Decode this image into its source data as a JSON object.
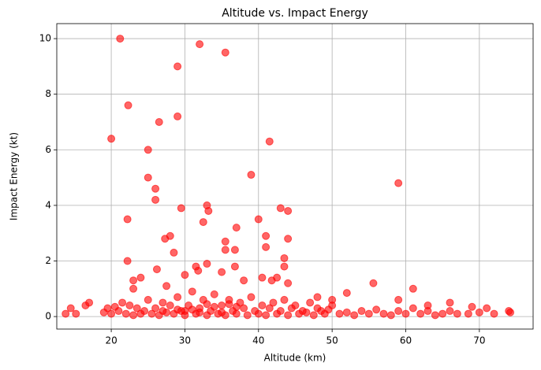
{
  "chart_data": {
    "type": "scatter",
    "title": "Altitude vs. Impact Energy",
    "x_label": "Altitude (km)",
    "y_label": "Impact Energy (kt)",
    "color": "#ff0000",
    "grid": true,
    "xlim": [
      12.6,
      77.3
    ],
    "ylim": [
      -0.45,
      10.54
    ],
    "xticks": [
      20,
      30,
      40,
      50,
      60,
      70
    ],
    "yticks": [
      0,
      2,
      4,
      6,
      8,
      10
    ],
    "x": [
      21.2,
      32,
      35.5,
      29,
      22.3,
      29,
      26.5,
      20,
      41.5,
      25,
      39,
      59,
      25,
      26,
      26,
      33,
      43,
      29.5,
      44,
      33.2,
      40,
      22.2,
      32.5,
      37,
      28,
      41,
      27.3,
      44,
      35.5,
      36.8,
      41,
      28.5,
      35.5,
      43.5,
      22.2,
      33,
      31.5,
      36.8,
      43.5,
      26.2,
      31.8,
      35,
      41.8,
      55.6,
      44,
      24,
      23,
      30,
      38,
      42.5,
      40.5,
      61,
      23,
      27.5,
      52,
      48,
      59,
      50,
      66,
      17,
      16.5,
      14.5,
      13.8,
      15.2,
      69,
      71,
      74,
      74.2,
      72,
      63,
      19,
      19.5,
      20,
      20.5,
      21,
      21.5,
      22,
      22.5,
      23,
      23.5,
      24,
      24.5,
      25,
      25.5,
      26,
      26.5,
      27,
      27.5,
      28,
      28.5,
      29,
      29.5,
      30,
      30.5,
      31,
      31.5,
      32,
      32.5,
      33,
      33.5,
      34,
      34.5,
      35,
      35.5,
      36,
      36.5,
      37,
      37.5,
      38,
      38.5,
      39,
      39.5,
      40,
      40.5,
      41,
      41.5,
      42,
      42.5,
      43,
      43.5,
      44,
      44.5,
      45,
      45.5,
      46,
      46.5,
      47,
      47.5,
      48,
      48.5,
      49,
      49.5,
      50,
      51,
      52,
      53,
      54,
      55,
      56,
      57,
      58,
      59,
      60,
      61,
      62,
      63,
      64,
      65,
      66,
      67,
      68.5,
      70,
      31,
      33,
      35,
      37,
      29,
      27,
      34,
      36,
      32,
      30
    ],
    "values": [
      10,
      9.8,
      9.5,
      9,
      7.6,
      7.2,
      7,
      6.4,
      6.3,
      6,
      5.1,
      4.8,
      5,
      4.6,
      4.2,
      4,
      3.9,
      3.9,
      3.8,
      3.8,
      3.5,
      3.5,
      3.4,
      3.2,
      2.9,
      2.9,
      2.8,
      2.8,
      2.7,
      2.4,
      2.5,
      2.3,
      2.4,
      2.1,
      2,
      1.9,
      1.8,
      1.8,
      1.8,
      1.7,
      1.65,
      1.6,
      1.3,
      1.2,
      1.2,
      1.4,
      1.3,
      1.5,
      1.3,
      1.4,
      1.4,
      1,
      1,
      1.1,
      0.85,
      0.7,
      0.6,
      0.6,
      0.5,
      0.5,
      0.4,
      0.3,
      0.1,
      0.1,
      0.35,
      0.3,
      0.2,
      0.15,
      0.1,
      0.4,
      0.15,
      0.3,
      0.1,
      0.35,
      0.2,
      0.5,
      0.1,
      0.4,
      0.05,
      0.3,
      0.1,
      0.2,
      0.6,
      0.1,
      0.3,
      0.05,
      0.5,
      0.15,
      0.4,
      0.1,
      0.7,
      0.2,
      0.05,
      0.4,
      0.9,
      0.1,
      0.3,
      0.6,
      0.05,
      0.2,
      0.8,
      0.1,
      0.4,
      0.05,
      0.6,
      0.2,
      0.1,
      0.5,
      0.3,
      0.05,
      0.7,
      0.2,
      0.1,
      0.4,
      0.05,
      0.3,
      0.5,
      0.1,
      0.2,
      0.6,
      0.05,
      0.3,
      0.4,
      0.1,
      0.2,
      0.15,
      0.5,
      0.05,
      0.3,
      0.2,
      0.1,
      0.25,
      0.4,
      0.1,
      0.15,
      0.05,
      0.2,
      0.1,
      0.25,
      0.1,
      0.05,
      0.2,
      0.1,
      0.3,
      0.1,
      0.2,
      0.05,
      0.1,
      0.2,
      0.1,
      0.1,
      0.15,
      0.25,
      0.45,
      0.15,
      0.35,
      0.25,
      0.2,
      0.35,
      0.45,
      0.15,
      0.2
    ]
  }
}
